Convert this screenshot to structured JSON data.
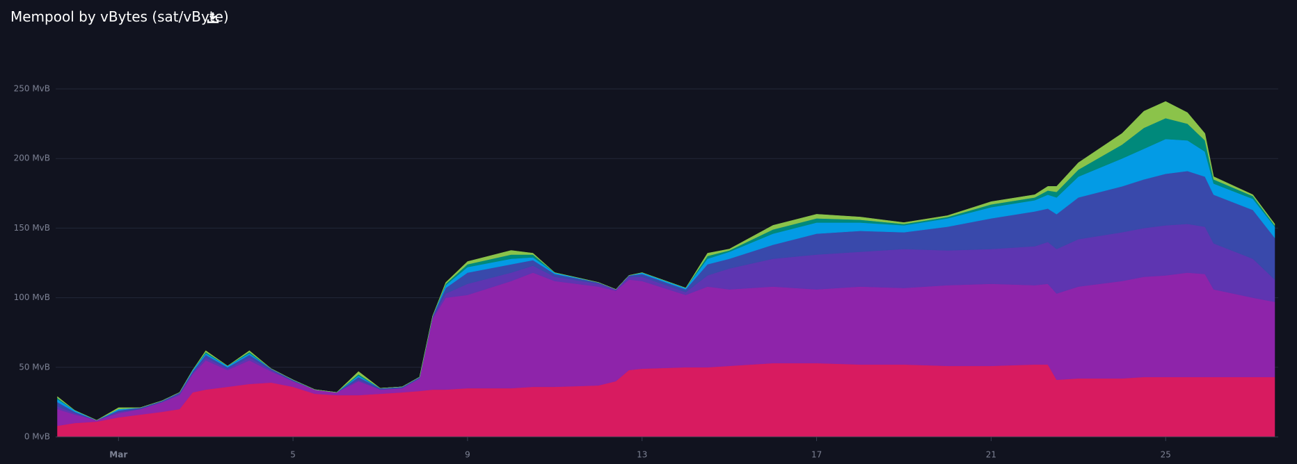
{
  "chart_data": {
    "type": "stacked_area",
    "title": "Mempool by vBytes (sat/vByte)",
    "x": [
      -0.4,
      0,
      0.5,
      1,
      1.5,
      2,
      2.4,
      2.7,
      3,
      3.5,
      4,
      4.5,
      5,
      5.5,
      6,
      6.5,
      7,
      7.5,
      7.9,
      8.2,
      8.5,
      9,
      10,
      10.5,
      11,
      12,
      12.4,
      12.7,
      13,
      14,
      14.5,
      15,
      16,
      17,
      18,
      19,
      20,
      21,
      22,
      22.3,
      22.5,
      23,
      24,
      24.5,
      25,
      25.5,
      25.9,
      26.1,
      27,
      27.5
    ],
    "series": [
      {
        "color": "#d81b60",
        "values": [
          8,
          10,
          11,
          14,
          16,
          18,
          20,
          32,
          34,
          36,
          38,
          39,
          36,
          31,
          30,
          30,
          31,
          32,
          33,
          34,
          34,
          35,
          35,
          36,
          36,
          37,
          40,
          48,
          49,
          50,
          50,
          51,
          53,
          53,
          52,
          52,
          51,
          51,
          52,
          52,
          41,
          42,
          42,
          43,
          43,
          43,
          43,
          43,
          43,
          43
        ]
      },
      {
        "color": "#8e24aa",
        "values": [
          12,
          6,
          1,
          3,
          4,
          7,
          10,
          13,
          21,
          12,
          17,
          8,
          4,
          3,
          2,
          10,
          3,
          3,
          9,
          51,
          66,
          67,
          77,
          82,
          76,
          71,
          65,
          65,
          63,
          52,
          58,
          55,
          55,
          53,
          56,
          55,
          58,
          59,
          57,
          58,
          62,
          66,
          70,
          72,
          73,
          75,
          74,
          63,
          57,
          54
        ]
      },
      {
        "color": "#5e35b1",
        "values": [
          2,
          1,
          0,
          1,
          0,
          0,
          1,
          1,
          2,
          1,
          2,
          1,
          0,
          0,
          0,
          1,
          0,
          0,
          0,
          1,
          3,
          8,
          6,
          5,
          3,
          2,
          1,
          2,
          3,
          2,
          8,
          15,
          20,
          25,
          25,
          28,
          25,
          25,
          28,
          30,
          32,
          34,
          35,
          35,
          36,
          35,
          34,
          33,
          28,
          16
        ]
      },
      {
        "color": "#3949ab",
        "values": [
          3,
          1,
          0,
          1,
          1,
          1,
          1,
          1,
          2,
          1,
          2,
          1,
          1,
          0,
          0,
          2,
          1,
          1,
          1,
          1,
          4,
          8,
          6,
          4,
          2,
          1,
          0,
          1,
          2,
          2,
          8,
          7,
          10,
          15,
          15,
          12,
          17,
          22,
          25,
          24,
          25,
          30,
          33,
          35,
          37,
          38,
          36,
          35,
          35,
          30
        ]
      },
      {
        "color": "#039be5",
        "values": [
          2,
          1,
          0,
          1,
          0,
          0,
          0,
          1,
          1,
          1,
          1,
          0,
          0,
          0,
          0,
          1,
          0,
          0,
          0,
          0,
          2,
          4,
          4,
          2,
          1,
          0,
          0,
          0,
          1,
          1,
          4,
          5,
          8,
          8,
          6,
          5,
          6,
          8,
          8,
          10,
          12,
          15,
          20,
          22,
          25,
          22,
          18,
          8,
          8,
          8
        ]
      },
      {
        "color": "#00897b",
        "values": [
          1,
          0,
          0,
          0,
          0,
          0,
          0,
          0,
          1,
          0,
          1,
          0,
          0,
          0,
          0,
          1,
          0,
          0,
          0,
          0,
          1,
          2,
          3,
          2,
          0,
          0,
          0,
          0,
          0,
          0,
          2,
          1,
          3,
          3,
          2,
          1,
          1,
          2,
          2,
          3,
          4,
          5,
          10,
          15,
          15,
          12,
          8,
          3,
          2,
          1
        ]
      },
      {
        "color": "#8bc34a",
        "values": [
          1,
          0,
          0,
          1,
          0,
          0,
          0,
          0,
          1,
          0,
          1,
          0,
          0,
          0,
          0,
          2,
          0,
          0,
          0,
          0,
          1,
          2,
          3,
          1,
          0,
          0,
          0,
          0,
          0,
          0,
          2,
          1,
          3,
          3,
          2,
          1,
          1,
          2,
          2,
          3,
          4,
          5,
          8,
          12,
          12,
          8,
          5,
          2,
          1,
          1
        ]
      }
    ],
    "xlim": [
      -0.44,
      27.58
    ],
    "xticks": [
      {
        "value": 1,
        "label": "Mar"
      },
      5,
      9,
      13,
      17,
      21,
      25
    ],
    "ylim": [
      0,
      250
    ],
    "yticks": [
      {
        "value": 0,
        "label": "0 MvB"
      },
      {
        "value": 50,
        "label": "50 MvB"
      },
      {
        "value": 100,
        "label": "100 MvB"
      },
      {
        "value": 150,
        "label": "150 MvB"
      },
      {
        "value": 200,
        "label": "200 MvB"
      },
      {
        "value": 250,
        "label": "250 MvB"
      }
    ],
    "grid": true
  }
}
